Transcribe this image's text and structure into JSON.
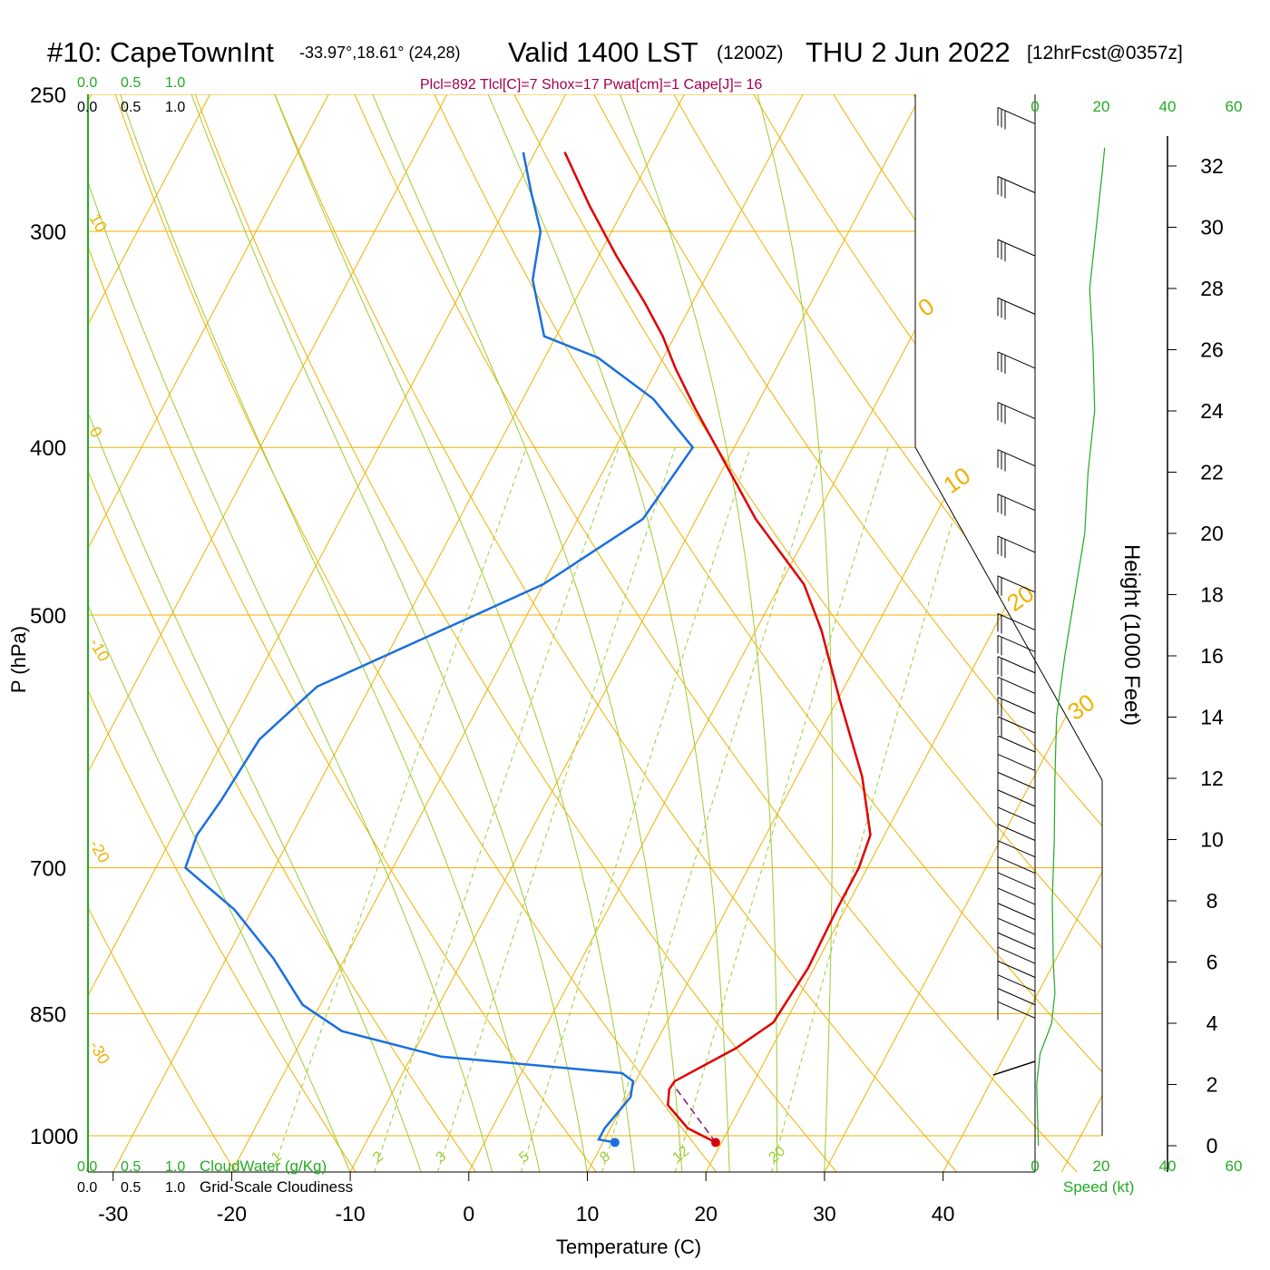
{
  "header": {
    "station": "#10: CapeTownInt",
    "coords": "-33.97°,18.61° (24,28)",
    "valid": "Valid 1400 LST",
    "utc": "(1200Z)",
    "date": "THU 2 Jun 2022",
    "forecast": "[12hrFcst@0357z]",
    "indices": "Plcl=892 Tlcl[C]=7 Shox=17 Pwat[cm]=1 Cape[J]= 16"
  },
  "colors": {
    "temperature": "#e00000",
    "dewpoint": "#1a6fe0",
    "isotherm": "#f0b000",
    "dry_adiabat": "#f0b000",
    "moist_adiabat": "#9acd32",
    "mixing_ratio": "#9acd32",
    "green_text": "#22aa22",
    "indices_text": "#a00050"
  },
  "chart_data": {
    "type": "skew-t",
    "xlabel": "Temperature (C)",
    "ylabel": "P (hPa)",
    "y2label": "Height (1000 Feet)",
    "pressure_ticks": [
      "250",
      "300",
      "400",
      "500",
      "700",
      "850",
      "1000"
    ],
    "pressure_levels": [
      250,
      300,
      400,
      500,
      700,
      850,
      1000
    ],
    "temperature_ticks": [
      "-30",
      "-20",
      "-10",
      "0",
      "10",
      "20",
      "30",
      "40"
    ],
    "temperature_values": [
      -30,
      -20,
      -10,
      0,
      10,
      20,
      30,
      40
    ],
    "height_ticks": [
      "32",
      "30",
      "28",
      "26",
      "24",
      "22",
      "20",
      "18",
      "16",
      "14",
      "12",
      "10",
      "8",
      "6",
      "4",
      "2",
      "0"
    ],
    "isotherm_labels": [
      "10",
      "0",
      "-10",
      "-20",
      "-30",
      "0",
      "10",
      "20",
      "30"
    ],
    "mixing_ratio_labels": [
      "1",
      "2",
      "3",
      "5",
      "8",
      "12",
      "20"
    ],
    "cloud_water": {
      "label": "CloudWater (g/Kg)",
      "ticks": [
        "0.0",
        "0.5",
        "1.0"
      ]
    },
    "cloudiness": {
      "label": "Grid-Scale Cloudiness",
      "ticks": [
        "0.0",
        "0.5",
        "1.0"
      ]
    },
    "wind_speed": {
      "label": "Speed (kt)",
      "ticks": [
        "0",
        "20",
        "40",
        "60"
      ]
    },
    "series": [
      {
        "name": "Temperature",
        "points": [
          [
            1009,
            19.5
          ],
          [
            990,
            16.5
          ],
          [
            960,
            13.8
          ],
          [
            940,
            13.2
          ],
          [
            930,
            13.3
          ],
          [
            890,
            17.0
          ],
          [
            860,
            19.0
          ],
          [
            800,
            19.5
          ],
          [
            740,
            19.3
          ],
          [
            700,
            19.3
          ],
          [
            670,
            18.8
          ],
          [
            620,
            15.5
          ],
          [
            560,
            10.2
          ],
          [
            510,
            5.5
          ],
          [
            480,
            2.0
          ],
          [
            440,
            -5.0
          ],
          [
            400,
            -11.5
          ],
          [
            380,
            -15.0
          ],
          [
            360,
            -18.5
          ],
          [
            345,
            -21.0
          ],
          [
            330,
            -24.0
          ],
          [
            310,
            -28.5
          ],
          [
            290,
            -33.0
          ],
          [
            270,
            -37.5
          ]
        ]
      },
      {
        "name": "Dewpoint",
        "points": [
          [
            1009,
            11.0
          ],
          [
            1005,
            9.5
          ],
          [
            990,
            9.5
          ],
          [
            950,
            10.3
          ],
          [
            930,
            9.8
          ],
          [
            920,
            8.5
          ],
          [
            900,
            -7.5
          ],
          [
            870,
            -17.0
          ],
          [
            840,
            -21.5
          ],
          [
            790,
            -26.0
          ],
          [
            740,
            -31.5
          ],
          [
            700,
            -37.5
          ],
          [
            670,
            -38.0
          ],
          [
            640,
            -37.5
          ],
          [
            590,
            -37.0
          ],
          [
            550,
            -34.5
          ],
          [
            480,
            -20.0
          ],
          [
            440,
            -14.5
          ],
          [
            400,
            -13.5
          ],
          [
            375,
            -19.0
          ],
          [
            355,
            -25.5
          ],
          [
            345,
            -31.0
          ],
          [
            320,
            -34.5
          ],
          [
            300,
            -36.0
          ],
          [
            285,
            -38.5
          ],
          [
            270,
            -41.0
          ]
        ]
      },
      {
        "name": "Height",
        "points": [
          [
            0,
            1.0
          ],
          [
            2,
            0.5
          ],
          [
            3,
            1.5
          ],
          [
            4,
            5.0
          ],
          [
            5,
            6.0
          ],
          [
            6,
            5.5
          ],
          [
            8,
            5.2
          ],
          [
            10,
            5.8
          ],
          [
            12,
            6.0
          ],
          [
            14,
            6.5
          ],
          [
            16,
            9.0
          ],
          [
            18,
            12.0
          ],
          [
            20,
            15.0
          ],
          [
            22,
            16.0
          ],
          [
            24,
            18.0
          ],
          [
            26,
            17.5
          ],
          [
            28,
            16.5
          ],
          [
            30,
            18.5
          ],
          [
            32,
            20.5
          ],
          [
            32.6,
            21.0
          ]
        ]
      }
    ]
  }
}
